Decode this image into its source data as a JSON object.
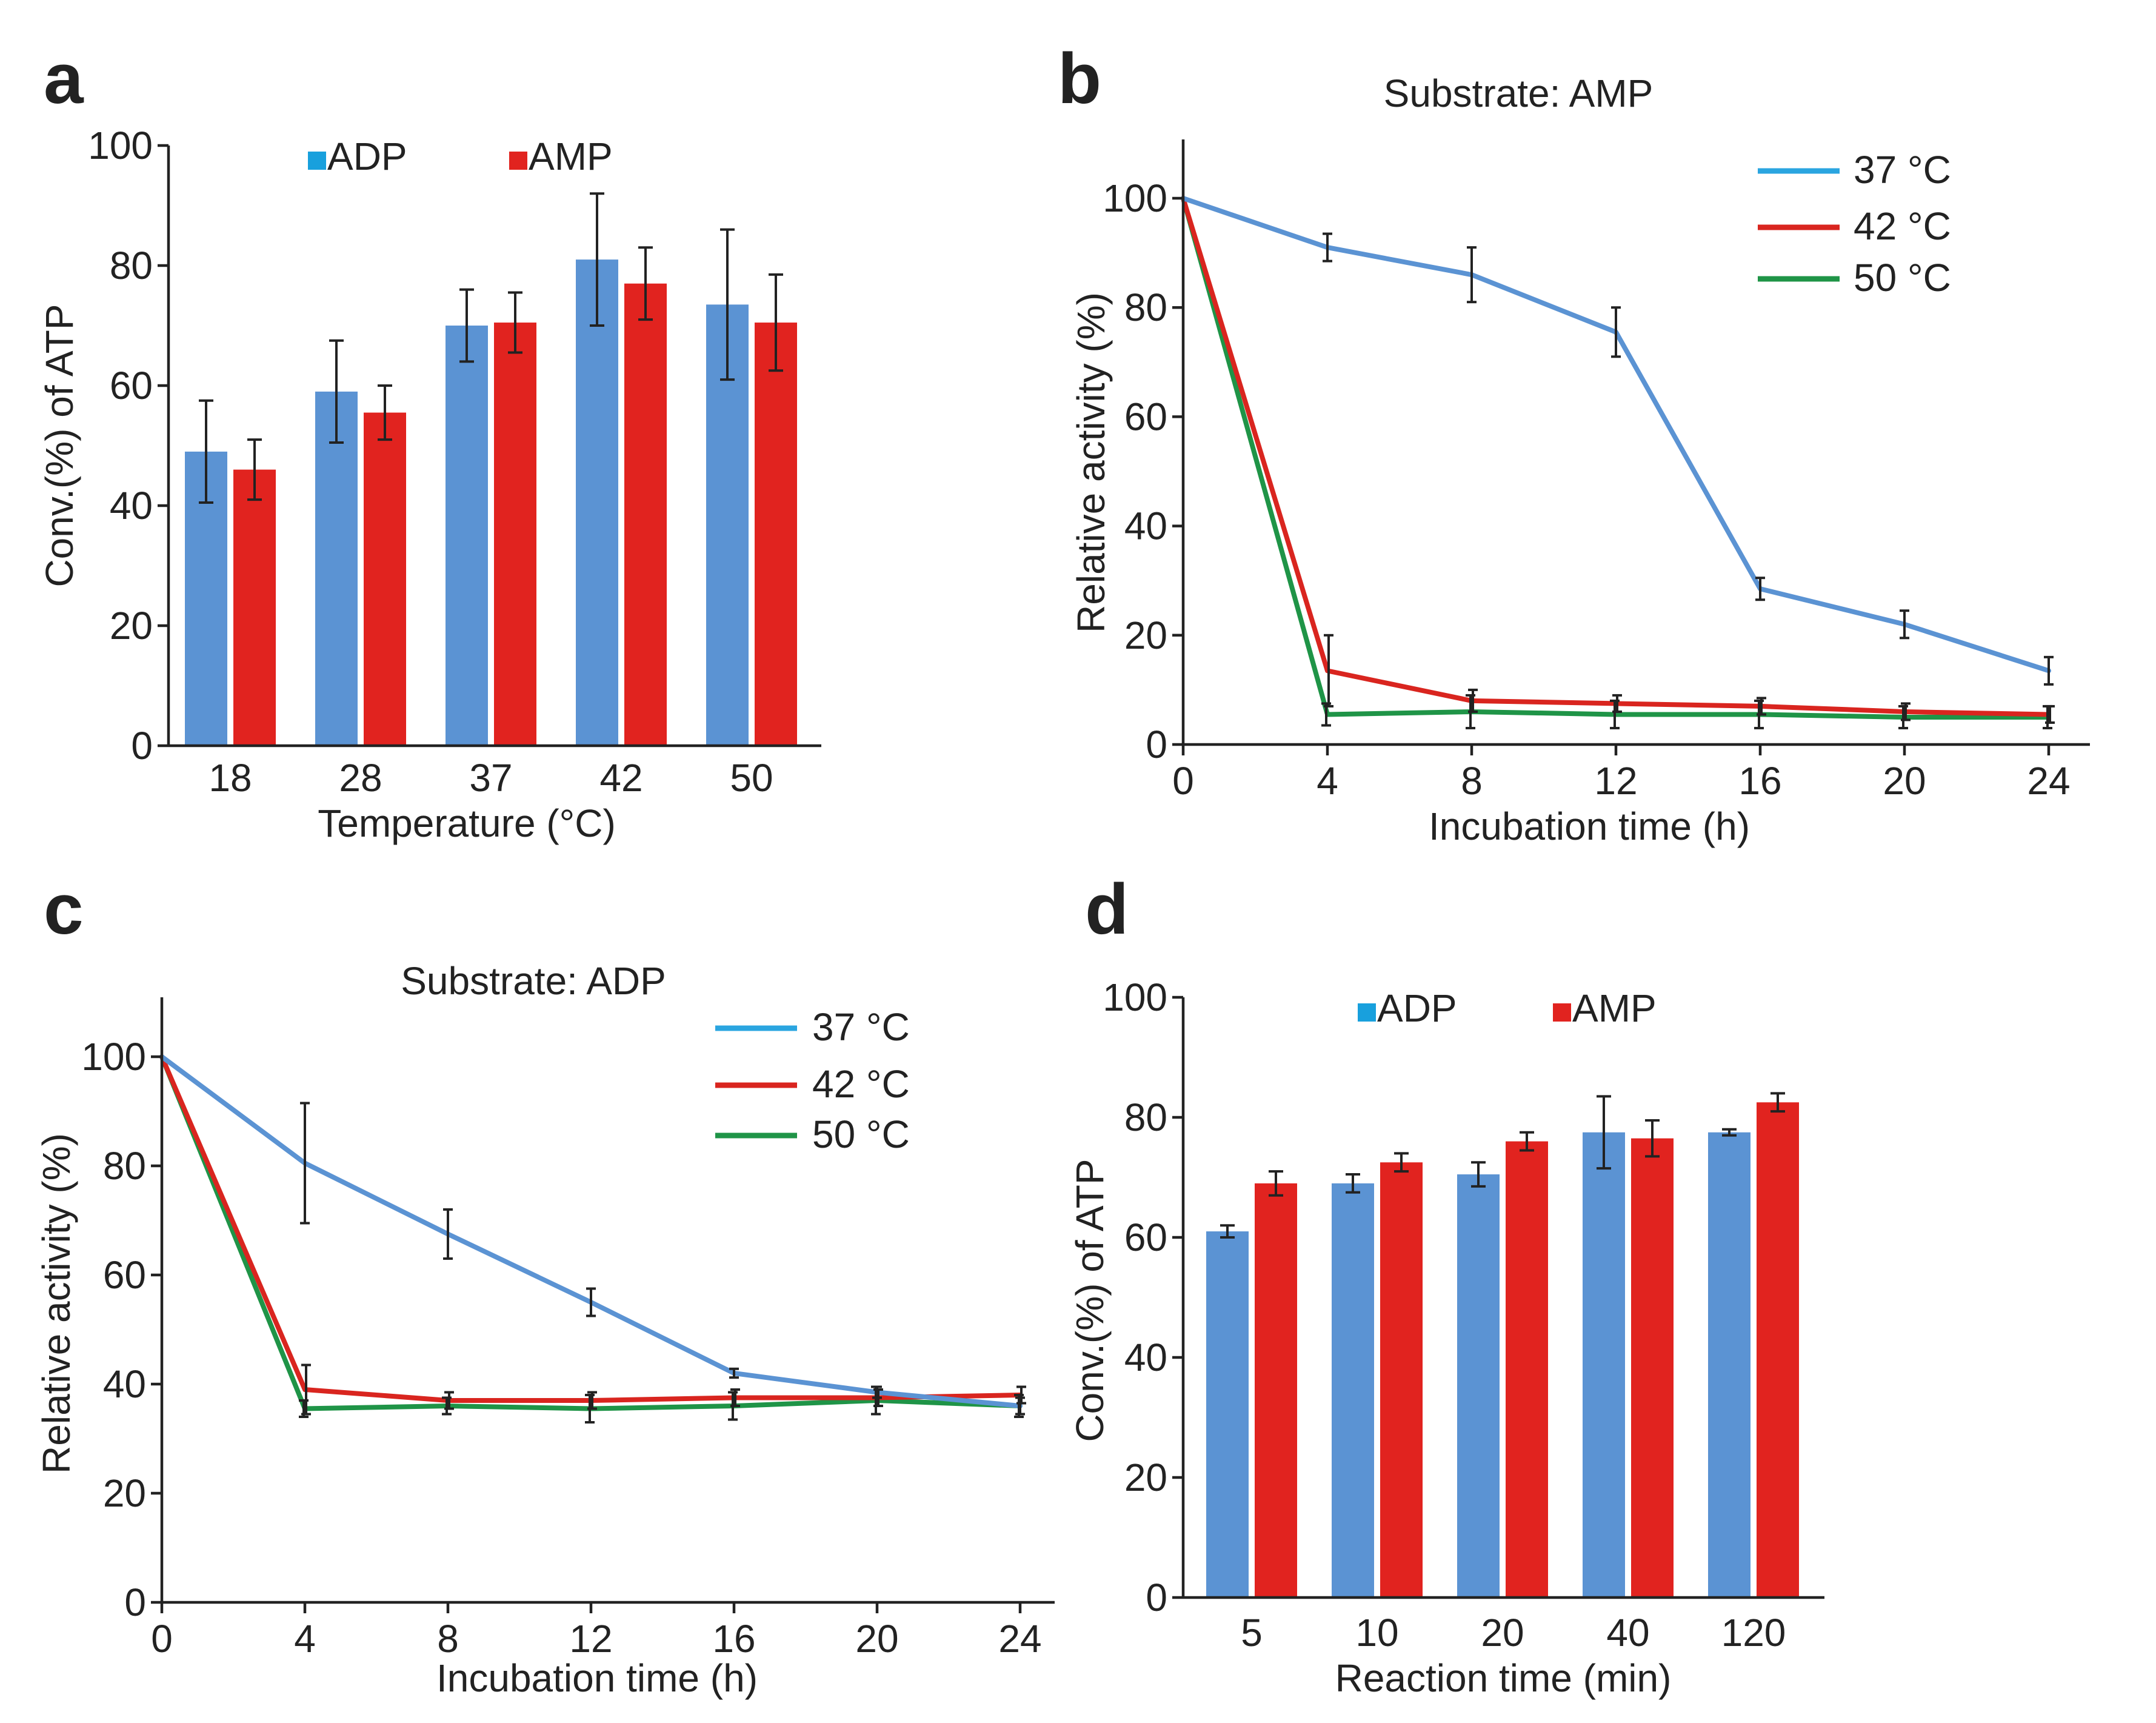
{
  "colors": {
    "adp_bar": "#5b93d3",
    "adp_legend": "#18a0dd",
    "amp": "#e1231f",
    "line_37": "#5b93d3",
    "line_37_legend": "#2aa5e0",
    "line_42": "#d9251f",
    "line_50": "#1f9447",
    "axis": "#222222"
  },
  "chart_data": [
    {
      "panel": "a",
      "type": "bar",
      "title": "",
      "xlabel": "Temperature (°C)",
      "ylabel": "Conv.(%) of ATP",
      "ylim": [
        0,
        100
      ],
      "yticks": [
        0,
        20,
        40,
        60,
        80,
        100
      ],
      "categories": [
        "18",
        "28",
        "37",
        "42",
        "50"
      ],
      "legend": [
        "ADP",
        "AMP"
      ],
      "legend_position": "top-center",
      "series": [
        {
          "name": "ADP",
          "values": [
            49,
            59,
            70,
            81,
            73.5
          ],
          "errors": [
            8.5,
            8.5,
            6,
            11,
            12.5
          ]
        },
        {
          "name": "AMP",
          "values": [
            46,
            55.5,
            70.5,
            77,
            70.5
          ],
          "errors": [
            5,
            4.5,
            5,
            6,
            8
          ]
        }
      ]
    },
    {
      "panel": "b",
      "type": "line",
      "title": "Substrate: AMP",
      "xlabel": "Incubation time (h)",
      "ylabel": "Relative activity (%)",
      "xlim": [
        0,
        24
      ],
      "ylim": [
        0,
        110
      ],
      "xticks": [
        0,
        4,
        8,
        12,
        16,
        20,
        24
      ],
      "yticks": [
        0,
        20,
        40,
        60,
        80,
        100
      ],
      "x": [
        0,
        4,
        8,
        12,
        16,
        20,
        24
      ],
      "legend_position": "top-right",
      "series": [
        {
          "name": "37 °C",
          "values": [
            100,
            91,
            86,
            75.5,
            28.5,
            22,
            13.5
          ],
          "errors": [
            0,
            2.5,
            5,
            4.5,
            2,
            2.5,
            2.5
          ]
        },
        {
          "name": "42 °C",
          "values": [
            100,
            13.5,
            8,
            7.5,
            7,
            6,
            5.5
          ],
          "errors": [
            0,
            6.5,
            2,
            1.5,
            1.5,
            1.5,
            1.5
          ]
        },
        {
          "name": "50 °C",
          "values": [
            100,
            5.5,
            6,
            5.5,
            5.5,
            5,
            5
          ],
          "errors": [
            0,
            2,
            3,
            2.5,
            2.5,
            2,
            2
          ]
        }
      ]
    },
    {
      "panel": "c",
      "type": "line",
      "title": "Substrate: ADP",
      "xlabel": "Incubation time (h)",
      "ylabel": "Relative activity (%)",
      "xlim": [
        0,
        24
      ],
      "ylim": [
        0,
        110
      ],
      "xticks": [
        0,
        4,
        8,
        12,
        16,
        20,
        24
      ],
      "yticks": [
        0,
        20,
        40,
        60,
        80,
        100
      ],
      "x": [
        0,
        4,
        8,
        12,
        16,
        20,
        24
      ],
      "legend_position": "top-right",
      "series": [
        {
          "name": "37 °C",
          "values": [
            100,
            80.5,
            67.5,
            55,
            42,
            38.5,
            36
          ],
          "errors": [
            0,
            11,
            4.5,
            2.5,
            0.8,
            1,
            1.5
          ]
        },
        {
          "name": "42 °C",
          "values": [
            100,
            39,
            37,
            37,
            37.5,
            37.5,
            38
          ],
          "errors": [
            0,
            4.5,
            1.5,
            1.5,
            1.5,
            1.5,
            1.5
          ]
        },
        {
          "name": "50 °C",
          "values": [
            100,
            35.5,
            36,
            35.5,
            36,
            37,
            36
          ],
          "errors": [
            0,
            1.5,
            1.5,
            2.5,
            2.5,
            2.5,
            2
          ]
        }
      ]
    },
    {
      "panel": "d",
      "type": "bar",
      "title": "",
      "xlabel": "Reaction time (min)",
      "ylabel": "Conv.(%) of ATP",
      "ylim": [
        0,
        100
      ],
      "yticks": [
        0,
        20,
        40,
        60,
        80,
        100
      ],
      "categories": [
        "5",
        "10",
        "20",
        "40",
        "120"
      ],
      "legend": [
        "ADP",
        "AMP"
      ],
      "legend_position": "top-center",
      "series": [
        {
          "name": "ADP",
          "values": [
            61,
            69,
            70.5,
            77.5,
            77.5
          ],
          "errors": [
            1,
            1.5,
            2,
            6,
            0.5
          ]
        },
        {
          "name": "AMP",
          "values": [
            69,
            72.5,
            76,
            76.5,
            82.5
          ],
          "errors": [
            2,
            1.5,
            1.5,
            3,
            1.5
          ]
        }
      ]
    }
  ]
}
